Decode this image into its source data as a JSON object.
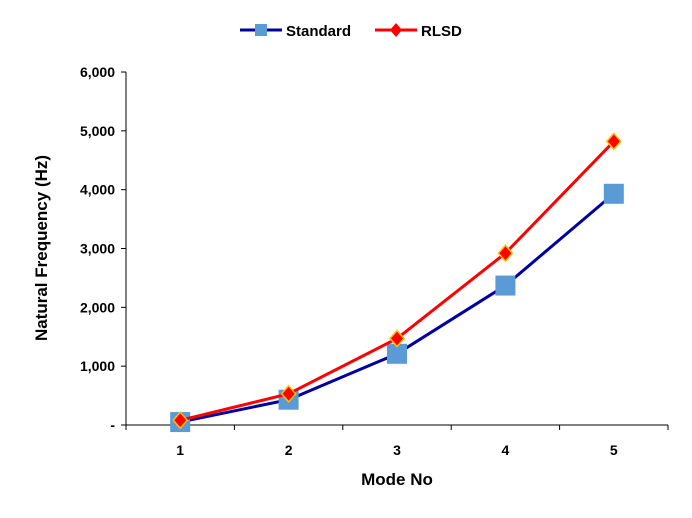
{
  "chart_data": {
    "type": "line",
    "title": "",
    "xlabel": "Mode No",
    "ylabel": "Natural Frequency (Hz)",
    "categories": [
      "1",
      "2",
      "3",
      "4",
      "5"
    ],
    "ylim": [
      0,
      6000
    ],
    "yticks": [
      0,
      1000,
      2000,
      3000,
      4000,
      5000,
      6000
    ],
    "ytick_labels": [
      "-",
      "1,000",
      "2,000",
      "3,000",
      "4,000",
      "5,000",
      "6,000"
    ],
    "grid": false,
    "legend_position": "top-center",
    "series": [
      {
        "name": "Standard",
        "values": [
          50,
          430,
          1210,
          2370,
          3930
        ],
        "color": "#0000a0",
        "marker": "square",
        "marker_color": "#5b9bd5"
      },
      {
        "name": "RLSD",
        "values": [
          80,
          530,
          1470,
          2920,
          4820
        ],
        "color": "#ff0000",
        "marker": "diamond",
        "marker_color": "#ff0000"
      }
    ]
  }
}
